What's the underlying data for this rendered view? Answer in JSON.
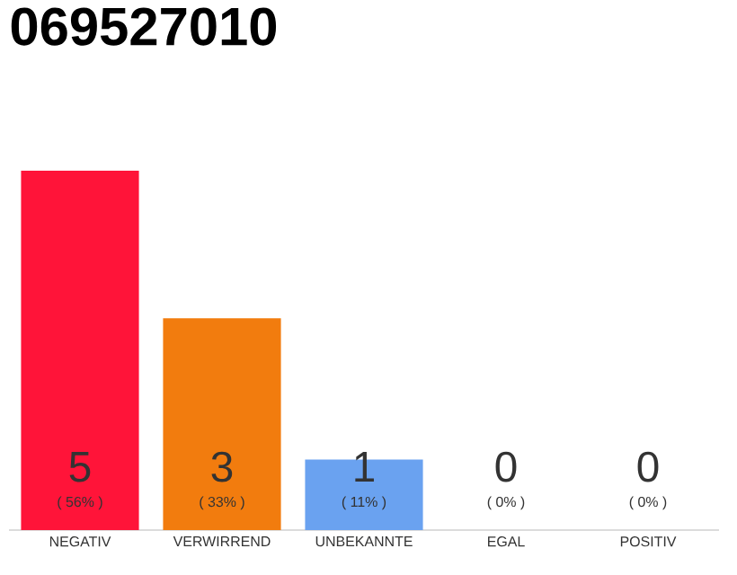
{
  "chart_data": {
    "type": "bar",
    "title": "069527010",
    "categories": [
      "NEGATIV",
      "VERWIRREND",
      "UNBEKANNTE",
      "EGAL",
      "POSITIV"
    ],
    "values": [
      56,
      33,
      11,
      0,
      0
    ],
    "colors": [
      "#ff1439",
      "#f27c0e",
      "#6aa2f0",
      "#cccccc",
      "#cccccc"
    ],
    "value_labels": [
      "( 56% )",
      "( 33% )",
      "( 11% )",
      "( 0% )",
      "( 0% )"
    ],
    "annotations": [
      {
        "text": "5",
        "x": "NEGATIV",
        "y": 0
      },
      {
        "text": "3",
        "x": "VERWIRREND",
        "y": 0
      },
      {
        "text": "1",
        "x": "UNBEKANNTE",
        "y": 0
      },
      {
        "text": "0",
        "x": "EGAL",
        "y": 0
      },
      {
        "text": "0",
        "x": "POSITIV",
        "y": 0
      }
    ]
  }
}
